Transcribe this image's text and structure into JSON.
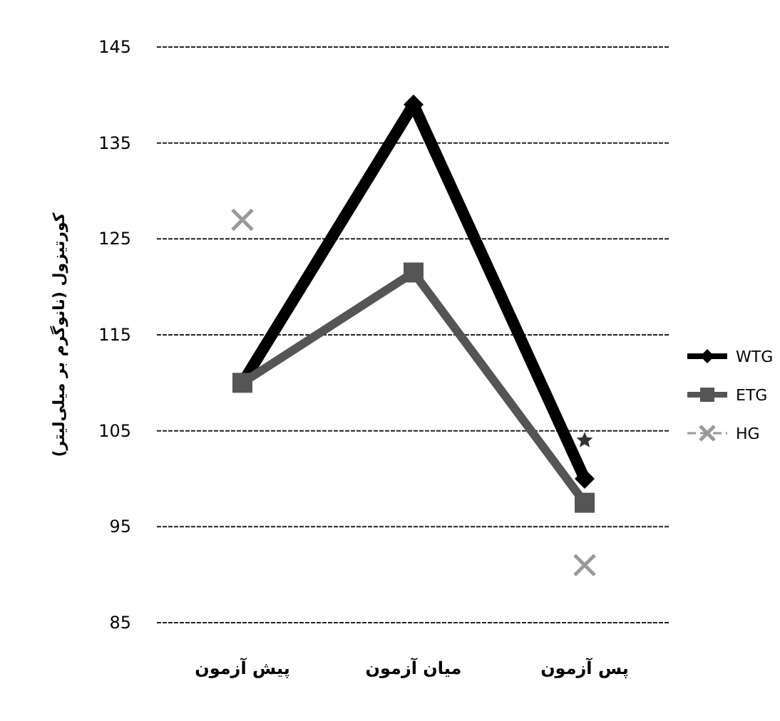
{
  "chart_data": {
    "type": "line",
    "ylabel": "کورتیزول (نانوگرم بر میلی‌لیتر)",
    "categories": [
      "پیش آزمون",
      "میان آزمون",
      "پس آزمون"
    ],
    "ylim": [
      85,
      145
    ],
    "yticks": [
      85,
      95,
      105,
      115,
      125,
      135,
      145
    ],
    "grid": "y",
    "legend": "right",
    "series": [
      {
        "name": "WTG",
        "color": "#000000",
        "values": [
          110,
          139,
          100
        ],
        "marker": "diamond",
        "line_style": "solid"
      },
      {
        "name": "ETG",
        "color": "#555555",
        "values": [
          110,
          121.5,
          97.5
        ],
        "marker": "square",
        "line_style": "solid"
      },
      {
        "name": "HG",
        "color": "#999999",
        "values": [
          127,
          null,
          91
        ],
        "marker": "cross",
        "line_style": "dashed"
      },
      {
        "type": "scatter",
        "color": "#333333",
        "x": [
          "پس آزمون"
        ],
        "values": [
          104
        ],
        "marker": "star"
      }
    ]
  }
}
